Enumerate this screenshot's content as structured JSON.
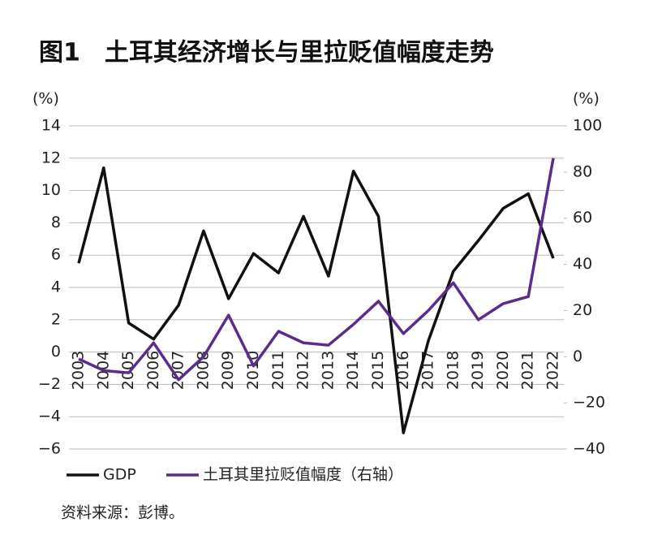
{
  "chart_data": {
    "type": "line",
    "title": "图1　土耳其经济增长与里拉贬值幅度走势",
    "y_unit": "(%)",
    "y2_unit": "(%)",
    "categories": [
      "2003",
      "2004",
      "2005",
      "2006",
      "2007",
      "2008",
      "2009",
      "2010",
      "2011",
      "2012",
      "2013",
      "2014",
      "2015",
      "2016",
      "2017",
      "2018",
      "2019",
      "2020",
      "2021",
      "2022"
    ],
    "series": [
      {
        "name": "GDP",
        "color": "#111111",
        "values": [
          5.5,
          11.4,
          1.8,
          0.8,
          2.9,
          7.5,
          3.3,
          6.1,
          4.9,
          8.4,
          4.7,
          11.2,
          8.4,
          -5.0,
          0.7,
          5.0,
          6.9,
          8.9,
          9.8,
          5.8
        ]
      },
      {
        "name": "土耳其里拉贬值幅度（右轴）",
        "color": "#5b2c8e",
        "axis": "y2",
        "values": [
          -1,
          -6,
          -7,
          6,
          -10,
          0,
          18,
          -4,
          11,
          6,
          5,
          14,
          24,
          10,
          20,
          32,
          16,
          23,
          26,
          86
        ]
      }
    ],
    "ylim": [
      -6,
      14
    ],
    "yticks": [
      {
        "value": -6,
        "label": "−6"
      },
      {
        "value": -4,
        "label": "−4"
      },
      {
        "value": -2,
        "label": "−2"
      },
      0,
      2,
      4,
      6,
      8,
      10,
      12,
      14
    ],
    "y2lim": [
      -40,
      100
    ],
    "y2ticks": [
      {
        "value": -40,
        "label": "−40"
      },
      {
        "value": -20,
        "label": "−20"
      },
      0,
      20,
      40,
      60,
      80,
      100
    ],
    "grid": true,
    "source": "资料来源：彭博。"
  }
}
